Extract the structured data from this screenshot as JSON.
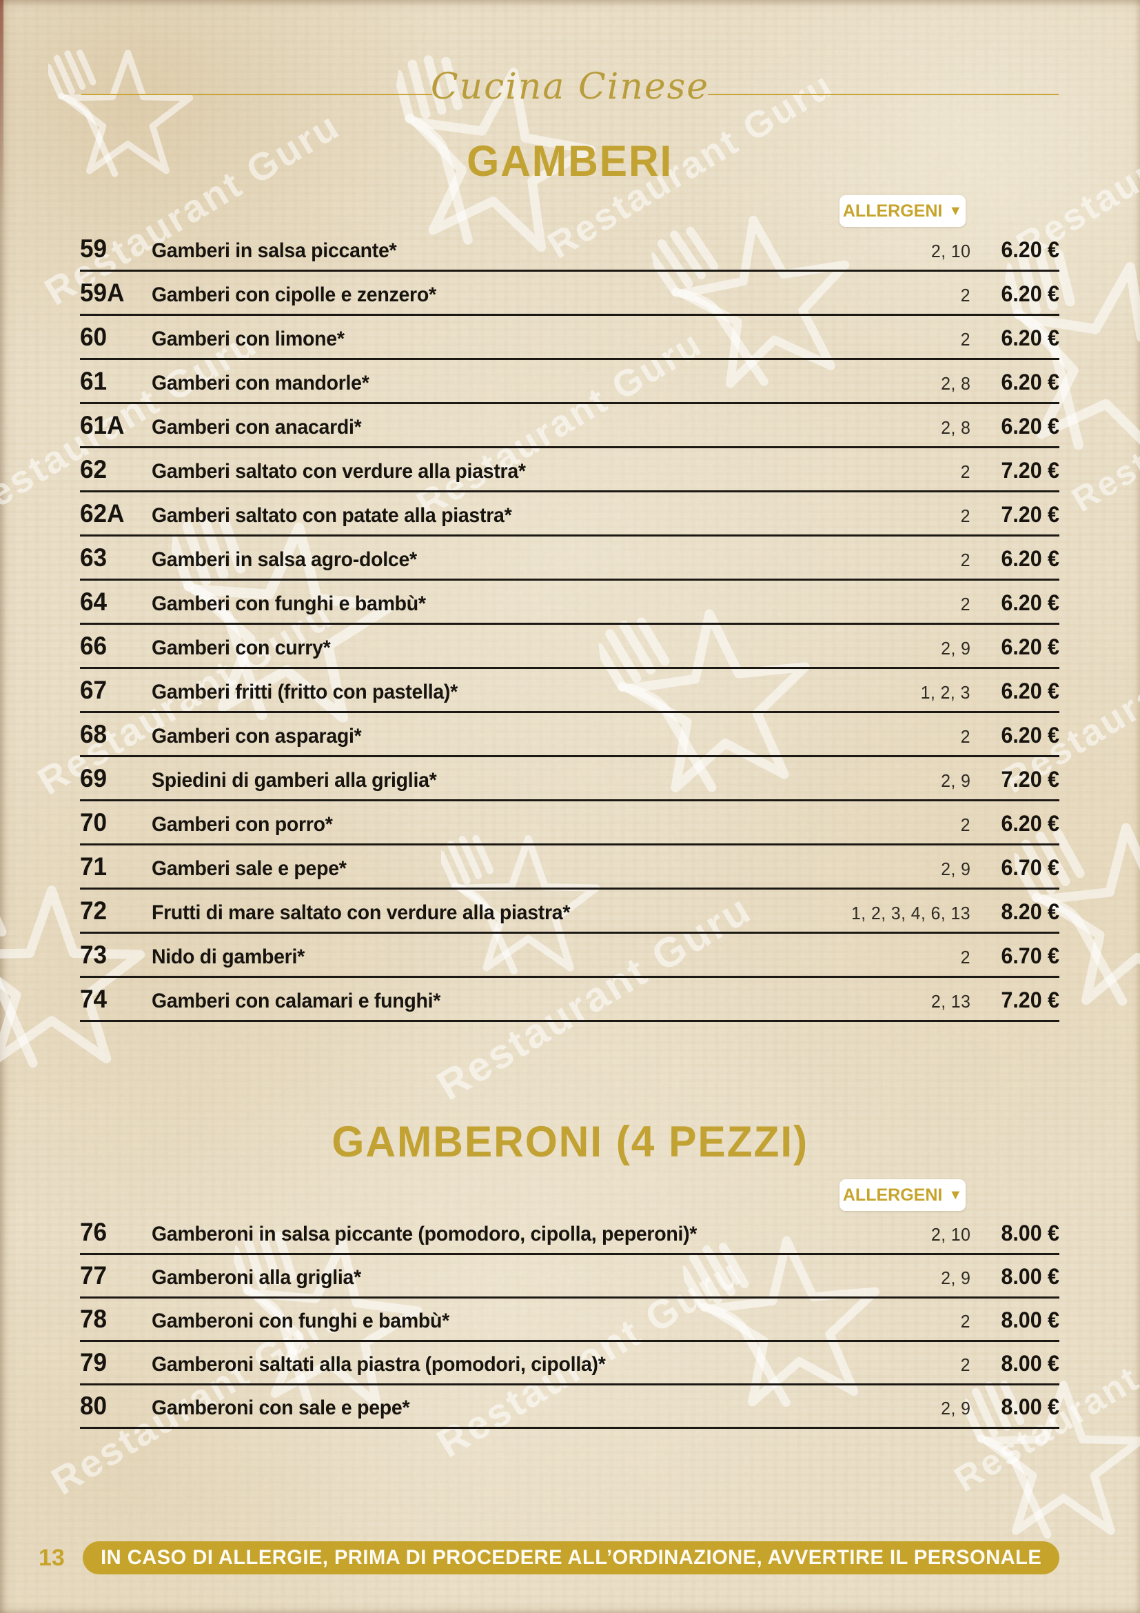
{
  "page": {
    "script_header": "Cucina Cinese",
    "page_number": "13",
    "footer_notice": "IN CASO DI ALLERGIE, PRIMA DI PROCEDERE ALL’ORDINAZIONE, AVVERTIRE IL PERSONALE",
    "watermark_text": "Restaurant Guru"
  },
  "icons": {
    "allergen_dropdown": "▼"
  },
  "colors": {
    "gold_heading": "#c2a232",
    "gold_pill": "#c6a42c",
    "ink": "#17130e",
    "paper": "#ece1ca",
    "badge_background": "#ffffff"
  },
  "sections": [
    {
      "title": "GAMBERI",
      "allergen_label": "ALLERGENI",
      "items": [
        {
          "num": "59",
          "name": "Gamberi in salsa piccante*",
          "allergens": "2, 10",
          "price": "6.20 €"
        },
        {
          "num": "59A",
          "name": "Gamberi con cipolle e zenzero*",
          "allergens": "2",
          "price": "6.20 €"
        },
        {
          "num": "60",
          "name": "Gamberi con limone*",
          "allergens": "2",
          "price": "6.20 €"
        },
        {
          "num": "61",
          "name": "Gamberi con mandorle*",
          "allergens": "2, 8",
          "price": "6.20 €"
        },
        {
          "num": "61A",
          "name": "Gamberi con anacardi*",
          "allergens": "2, 8",
          "price": "6.20 €"
        },
        {
          "num": "62",
          "name": "Gamberi saltato con verdure alla piastra*",
          "allergens": "2",
          "price": "7.20 €"
        },
        {
          "num": "62A",
          "name": "Gamberi saltato con patate alla piastra*",
          "allergens": "2",
          "price": "7.20 €"
        },
        {
          "num": "63",
          "name": "Gamberi in salsa agro-dolce*",
          "allergens": "2",
          "price": "6.20 €"
        },
        {
          "num": "64",
          "name": "Gamberi con funghi e bambù*",
          "allergens": "2",
          "price": "6.20 €"
        },
        {
          "num": "66",
          "name": "Gamberi con curry*",
          "allergens": "2, 9",
          "price": "6.20 €"
        },
        {
          "num": "67",
          "name": "Gamberi fritti (fritto con pastella)*",
          "allergens": "1, 2, 3",
          "price": "6.20 €"
        },
        {
          "num": "68",
          "name": "Gamberi con asparagi*",
          "allergens": "2",
          "price": "6.20 €"
        },
        {
          "num": "69",
          "name": "Spiedini di gamberi alla griglia*",
          "allergens": "2, 9",
          "price": "7.20 €"
        },
        {
          "num": "70",
          "name": "Gamberi con porro*",
          "allergens": "2",
          "price": "6.20 €"
        },
        {
          "num": "71",
          "name": "Gamberi sale e pepe*",
          "allergens": "2, 9",
          "price": "6.70 €"
        },
        {
          "num": "72",
          "name": "Frutti di mare saltato con verdure alla piastra*",
          "allergens": "1, 2, 3, 4, 6, 13",
          "price": "8.20 €"
        },
        {
          "num": "73",
          "name": "Nido di gamberi*",
          "allergens": "2",
          "price": "6.70 €"
        },
        {
          "num": "74",
          "name": "Gamberi con calamari e funghi*",
          "allergens": "2, 13",
          "price": "7.20 €"
        }
      ]
    },
    {
      "title": "GAMBERONI (4 PEZZI)",
      "allergen_label": "ALLERGENI",
      "items": [
        {
          "num": "76",
          "name": "Gamberoni in salsa piccante (pomodoro, cipolla, peperoni)*",
          "allergens": "2, 10",
          "price": "8.00 €"
        },
        {
          "num": "77",
          "name": "Gamberoni alla griglia*",
          "allergens": "2, 9",
          "price": "8.00 €"
        },
        {
          "num": "78",
          "name": "Gamberoni con funghi e bambù*",
          "allergens": "2",
          "price": "8.00 €"
        },
        {
          "num": "79",
          "name": "Gamberoni saltati alla piastra (pomodori, cipolla)*",
          "allergens": "2",
          "price": "8.00 €"
        },
        {
          "num": "80",
          "name": "Gamberoni con sale e pepe*",
          "allergens": "2, 9",
          "price": "8.00 €"
        }
      ]
    }
  ]
}
